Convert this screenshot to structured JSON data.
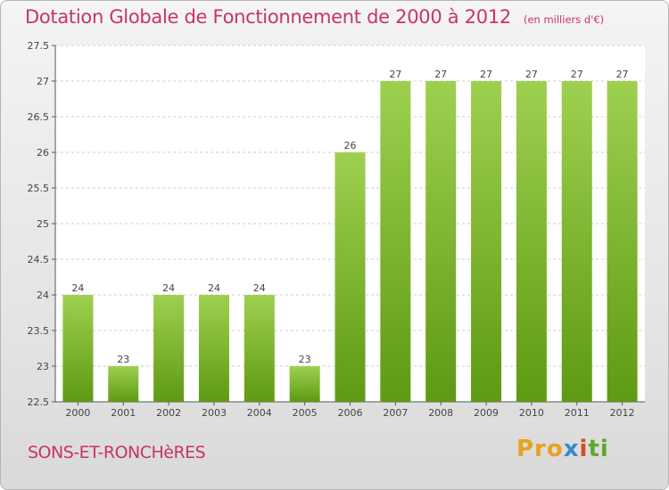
{
  "title": "Dotation Globale de Fonctionnement de 2000 à 2012",
  "unit_note": "(en milliers d'€)",
  "commune": "SONS-ET-RONCHèRES",
  "logo_text": "Proxiti",
  "colors": {
    "title": "#c8336b",
    "bar_light": "#9ed04f",
    "bar_dark": "#5e9a13",
    "grid": "#cccccc"
  },
  "chart_data": {
    "type": "bar",
    "categories": [
      "2000",
      "2001",
      "2002",
      "2003",
      "2004",
      "2005",
      "2006",
      "2007",
      "2008",
      "2009",
      "2010",
      "2011",
      "2012"
    ],
    "values": [
      24,
      23,
      24,
      24,
      24,
      23,
      26,
      27,
      27,
      27,
      27,
      27,
      27
    ],
    "ylim": [
      22.5,
      27.5
    ],
    "yticks": [
      22.5,
      23,
      23.5,
      24,
      24.5,
      25,
      25.5,
      26,
      26.5,
      27,
      27.5
    ],
    "grid": true,
    "legend": "none"
  }
}
